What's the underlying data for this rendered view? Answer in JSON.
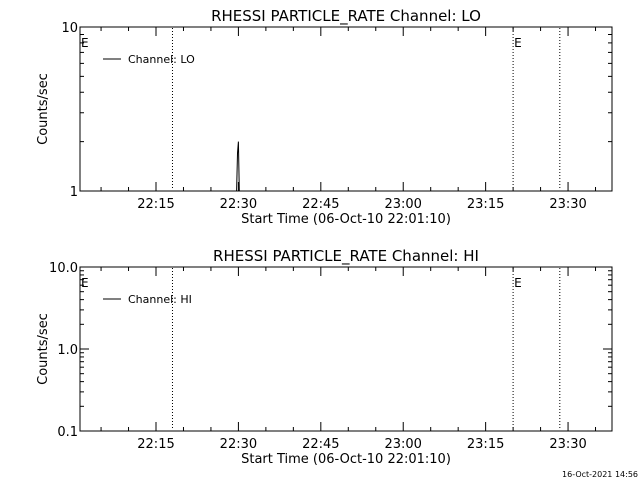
{
  "timestamp": "16-Oct-2021 14:56",
  "chart_data": [
    {
      "type": "line",
      "title": "RHESSI PARTICLE_RATE Channel: LO",
      "xlabel": "Start Time (06-Oct-10 22:01:10)",
      "ylabel": "Counts/sec",
      "yscale": "log",
      "xlim": [
        "22:01:10",
        "23:38:00"
      ],
      "ylim": [
        1,
        10
      ],
      "x_ticks": [
        "22:15",
        "22:30",
        "22:45",
        "23:00",
        "23:15",
        "23:30"
      ],
      "y_ticks": [
        "1",
        "10"
      ],
      "legend": {
        "entries": [
          "Channel: LO"
        ],
        "position": "top-left"
      },
      "markers": [
        {
          "label": "E",
          "time": "22:01:10"
        },
        {
          "label": "E",
          "time": "23:20:00"
        }
      ],
      "dotted_lines": [
        "22:18:00",
        "23:20:00",
        "23:28:30"
      ],
      "series": [
        {
          "name": "Channel: LO",
          "x": [
            "22:29:40",
            "22:29:50",
            "22:30:00",
            "22:30:10",
            "22:30:20"
          ],
          "y": [
            1,
            1.7,
            2.0,
            1.0,
            1
          ]
        }
      ]
    },
    {
      "type": "line",
      "title": "RHESSI PARTICLE_RATE Channel: HI",
      "xlabel": "Start Time (06-Oct-10 22:01:10)",
      "ylabel": "Counts/sec",
      "yscale": "log",
      "xlim": [
        "22:01:10",
        "23:38:00"
      ],
      "ylim": [
        0.1,
        10
      ],
      "x_ticks": [
        "22:15",
        "22:30",
        "22:45",
        "23:00",
        "23:15",
        "23:30"
      ],
      "y_ticks": [
        "0.1",
        "1.0",
        "10.0"
      ],
      "legend": {
        "entries": [
          "Channel: HI"
        ],
        "position": "top-left"
      },
      "markers": [
        {
          "label": "E",
          "time": "22:01:10"
        },
        {
          "label": "E",
          "time": "23:20:00"
        }
      ],
      "dotted_lines": [
        "22:18:00",
        "23:20:00",
        "23:28:30"
      ],
      "series": [
        {
          "name": "Channel: HI",
          "x": [],
          "y": []
        }
      ]
    }
  ]
}
